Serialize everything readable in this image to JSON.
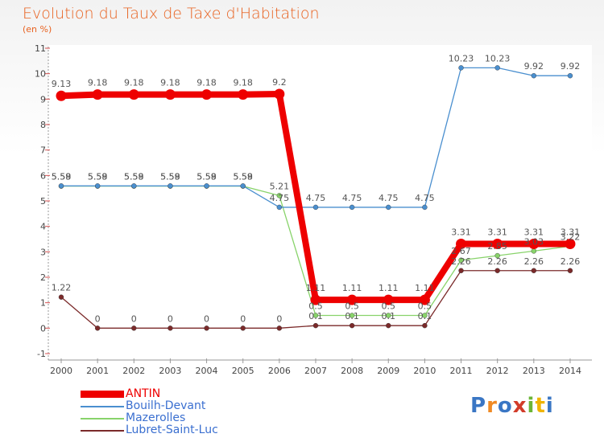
{
  "title": "Evolution du Taux de Taxe d'Habitation",
  "unit": "(en %)",
  "logo": "Proxiti",
  "chart_data": {
    "type": "line",
    "x": [
      2000,
      2001,
      2002,
      2003,
      2004,
      2005,
      2006,
      2007,
      2008,
      2009,
      2010,
      2011,
      2012,
      2013,
      2014
    ],
    "ylim": [
      -1,
      11
    ],
    "yticks": [
      -1,
      0,
      1,
      2,
      3,
      4,
      5,
      6,
      7,
      8,
      9,
      10,
      11
    ],
    "grid": false,
    "legend_position": "bottom-left",
    "series": [
      {
        "name": "Lubret-Saint-Luc",
        "color": "#7b2a2a",
        "values": [
          1.22,
          0,
          0,
          0,
          0,
          0,
          0,
          0.1,
          0.1,
          0.1,
          0.1,
          2.26,
          2.26,
          2.26,
          2.26
        ],
        "labels": [
          "1.22",
          "0",
          "0",
          "0",
          "0",
          "0",
          "0",
          "0.1",
          "0.1",
          "0.1",
          "0.1",
          "2.26",
          "2.26",
          "2.26",
          "2.26"
        ]
      },
      {
        "name": "Mazerolles",
        "color": "#88d36a",
        "values": [
          5.58,
          5.58,
          5.58,
          5.58,
          5.58,
          5.58,
          5.21,
          0.5,
          0.5,
          0.5,
          0.5,
          2.67,
          2.85,
          3.03,
          3.22
        ],
        "labels": [
          "5.58",
          "5.58",
          "5.58",
          "5.58",
          "5.58",
          "5.58",
          "5.21",
          "0.5",
          "0.5",
          "0.5",
          "0.5",
          "2.67",
          "2.85",
          "3.03",
          "3.22"
        ]
      },
      {
        "name": "Bouilh-Devant",
        "color": "#4a8fcf",
        "values": [
          5.59,
          5.59,
          5.59,
          5.59,
          5.59,
          5.59,
          4.75,
          4.75,
          4.75,
          4.75,
          4.75,
          10.23,
          10.23,
          9.92,
          9.92
        ],
        "labels": [
          "5.59",
          "5.59",
          "5.59",
          "5.59",
          "5.59",
          "5.59",
          "4.75",
          "4.75",
          "4.75",
          "4.75",
          "4.75",
          "10.23",
          "10.23",
          "9.92",
          "9.92"
        ]
      },
      {
        "name": "ANTIN",
        "color": "#ee0000",
        "values": [
          9.13,
          9.18,
          9.18,
          9.18,
          9.18,
          9.18,
          9.2,
          1.11,
          1.11,
          1.11,
          1.11,
          3.31,
          3.31,
          3.31,
          3.31
        ],
        "labels": [
          "9.13",
          "9.18",
          "9.18",
          "9.18",
          "9.18",
          "9.18",
          "9.2",
          "1.11",
          "1.11",
          "1.11",
          "1.11",
          "3.31",
          "3.31",
          "3.31",
          "3.31"
        ]
      }
    ]
  }
}
